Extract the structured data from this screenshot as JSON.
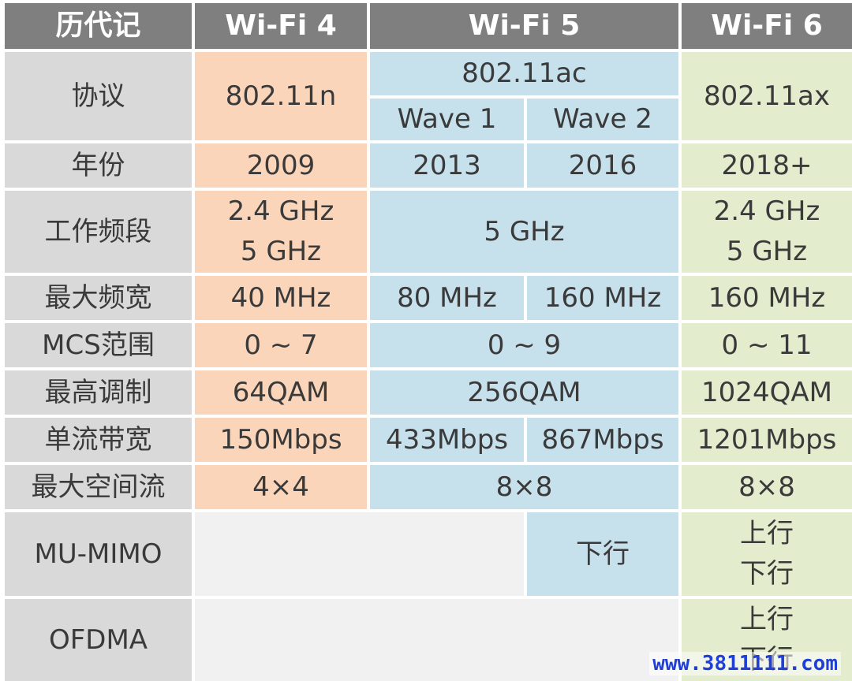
{
  "header": {
    "generation": "历代记",
    "wifi4": "Wi-Fi 4",
    "wifi5": "Wi-Fi 5",
    "wifi6": "Wi-Fi 6"
  },
  "rows": {
    "protocol": {
      "label": "协议",
      "wifi4": "802.11n",
      "wifi5": "802.11ac",
      "wave1": "Wave 1",
      "wave2": "Wave 2",
      "wifi6": "802.11ax"
    },
    "year": {
      "label": "年份",
      "wifi4": "2009",
      "wave1": "2013",
      "wave2": "2016",
      "wifi6": "2018+"
    },
    "band": {
      "label": "工作频段",
      "wifi4_a": "2.4 GHz",
      "wifi4_b": "5 GHz",
      "wifi5": "5 GHz",
      "wifi6_a": "2.4 GHz",
      "wifi6_b": "5 GHz"
    },
    "bandwidth": {
      "label": "最大频宽",
      "wifi4": "40 MHz",
      "wave1": "80 MHz",
      "wave2": "160 MHz",
      "wifi6": "160 MHz"
    },
    "mcs": {
      "label": "MCS范围",
      "wifi4": "0 ~ 7",
      "wifi5": "0 ~ 9",
      "wifi6": "0 ~ 11"
    },
    "modulation": {
      "label": "最高调制",
      "wifi4": "64QAM",
      "wifi5": "256QAM",
      "wifi6": "1024QAM"
    },
    "single_stream": {
      "label": "单流带宽",
      "wifi4": "150Mbps",
      "wave1": "433Mbps",
      "wave2": "867Mbps",
      "wifi6": "1201Mbps"
    },
    "spatial_streams": {
      "label": "最大空间流",
      "wifi4": "4×4",
      "wifi5": "8×8",
      "wifi6": "8×8"
    },
    "mu_mimo": {
      "label": "MU-MIMO",
      "wave2": "下行",
      "wifi6_a": "上行",
      "wifi6_b": "下行"
    },
    "ofdma": {
      "label": "OFDMA",
      "wifi6_a": "上行",
      "wifi6_b": "下行"
    }
  },
  "watermark": "www.3811111.com",
  "colors": {
    "header_bg": "#7f7f7f",
    "label_bg": "#d9d9d9",
    "wifi4_bg": "#fbd5b9",
    "wifi5_bg": "#c6e0ec",
    "wifi6_bg": "#e3eccd",
    "empty_bg": "#f1f1f1",
    "watermark": "#1f3fd6"
  }
}
